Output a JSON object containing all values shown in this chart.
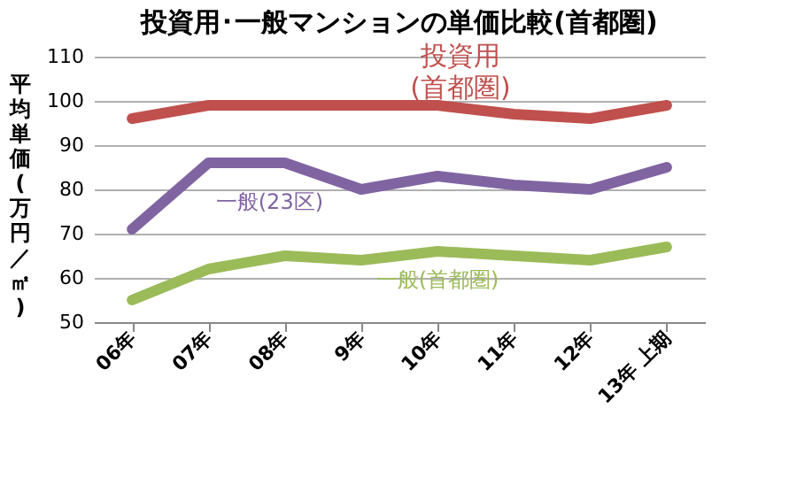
{
  "chart_data": {
    "type": "line",
    "title": "投資用･一般マンションの単価比較(首都圏)",
    "ylabel": "平均単価(万円／㎡)",
    "categories": [
      "06年",
      "07年",
      "08年",
      "9年",
      "10年",
      "11年",
      "12年",
      "13年 上期"
    ],
    "series": [
      {
        "name": "投資用\n(首都圏)",
        "color": "#c0504d",
        "values": [
          96,
          99,
          99,
          99,
          99,
          97,
          96,
          99
        ]
      },
      {
        "name": "一般(23区)",
        "color": "#8064a2",
        "values": [
          71,
          86,
          86,
          80,
          83,
          81,
          80,
          85
        ]
      },
      {
        "name": "一般(首都圏)",
        "color": "#9bbb59",
        "values": [
          55,
          62,
          65,
          64,
          66,
          65,
          64,
          67
        ]
      }
    ],
    "ylim": [
      50,
      110
    ],
    "yticks": [
      50,
      60,
      70,
      80,
      90,
      100,
      110
    ],
    "grid": "y",
    "marker": "none",
    "line_style": "solid"
  }
}
